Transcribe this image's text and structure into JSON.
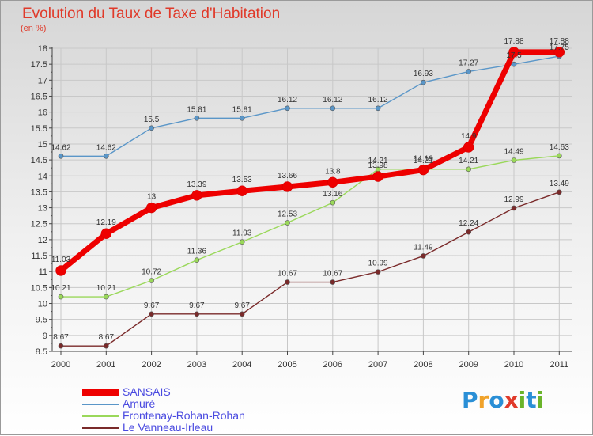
{
  "title": "Evolution du Taux de Taxe d'Habitation",
  "unit": "(en %)",
  "colors": {
    "title": "#e03a2a",
    "grid": "#c8c8c8",
    "axis": "#444444",
    "legend_text": "#4a4ae0"
  },
  "logo": {
    "letters": [
      "P",
      "r",
      "o",
      "x",
      "i",
      "t",
      "i"
    ],
    "colors": [
      "#2a8fd6",
      "#f0a22a",
      "#2a8fd6",
      "#e03a2a",
      "#6ab42a",
      "#2a8fd6",
      "#6ab42a"
    ]
  },
  "chart_data": {
    "type": "line",
    "title": "Evolution du Taux de Taxe d'Habitation",
    "ylabel": "(en %)",
    "xlabel": "",
    "x": [
      "2000",
      "2001",
      "2002",
      "2003",
      "2004",
      "2005",
      "2006",
      "2007",
      "2008",
      "2009",
      "2010",
      "2011"
    ],
    "ylim": [
      8.5,
      18
    ],
    "yticks": [
      "8.5",
      "9",
      "9.5",
      "10",
      "10.5",
      "11",
      "11.5",
      "12",
      "12.5",
      "13",
      "13.5",
      "14",
      "14.5",
      "15",
      "15.5",
      "16",
      "16.5",
      "17",
      "17.5",
      "18"
    ],
    "grid": true,
    "legend_position": "bottom-left",
    "series": [
      {
        "name": "SANSAIS",
        "color": "#ee0000",
        "thick": true,
        "values": [
          11.03,
          12.19,
          13,
          13.39,
          13.53,
          13.66,
          13.8,
          13.98,
          14.19,
          14.9,
          17.88,
          17.88
        ],
        "labels": [
          "11.03",
          "12.19",
          "13",
          "13.39",
          "13.53",
          "13.66",
          "13.8",
          "13.98",
          "14.19",
          "14.9",
          "17.88",
          "17.88"
        ]
      },
      {
        "name": "Amuré",
        "color": "#5a96c8",
        "thick": false,
        "values": [
          14.62,
          14.62,
          15.5,
          15.81,
          15.81,
          16.12,
          16.12,
          16.12,
          16.93,
          17.27,
          17.5,
          17.75
        ],
        "labels": [
          "14.62",
          "14.62",
          "15.5",
          "15.81",
          "15.81",
          "16.12",
          "16.12",
          "16.12",
          "16.93",
          "17.27",
          "17.5",
          "17.75"
        ]
      },
      {
        "name": "Frontenay-Rohan-Rohan",
        "color": "#9ad85a",
        "thick": false,
        "values": [
          10.21,
          10.21,
          10.72,
          11.36,
          11.93,
          12.53,
          13.16,
          14.21,
          14.21,
          14.21,
          14.49,
          14.63
        ],
        "labels": [
          "10.21",
          "10.21",
          "10.72",
          "11.36",
          "11.93",
          "12.53",
          "13.16",
          "14.21",
          "14.21",
          "14.21",
          "14.49",
          "14.63"
        ]
      },
      {
        "name": "Le Vanneau-Irleau",
        "color": "#7a2a2a",
        "thick": false,
        "values": [
          8.67,
          8.67,
          9.67,
          9.67,
          9.67,
          10.67,
          10.67,
          10.99,
          11.49,
          12.24,
          12.99,
          13.49
        ],
        "labels": [
          "8.67",
          "8.67",
          "9.67",
          "9.67",
          "9.67",
          "10.67",
          "10.67",
          "10.99",
          "11.49",
          "12.24",
          "12.99",
          "13.49"
        ]
      }
    ]
  }
}
